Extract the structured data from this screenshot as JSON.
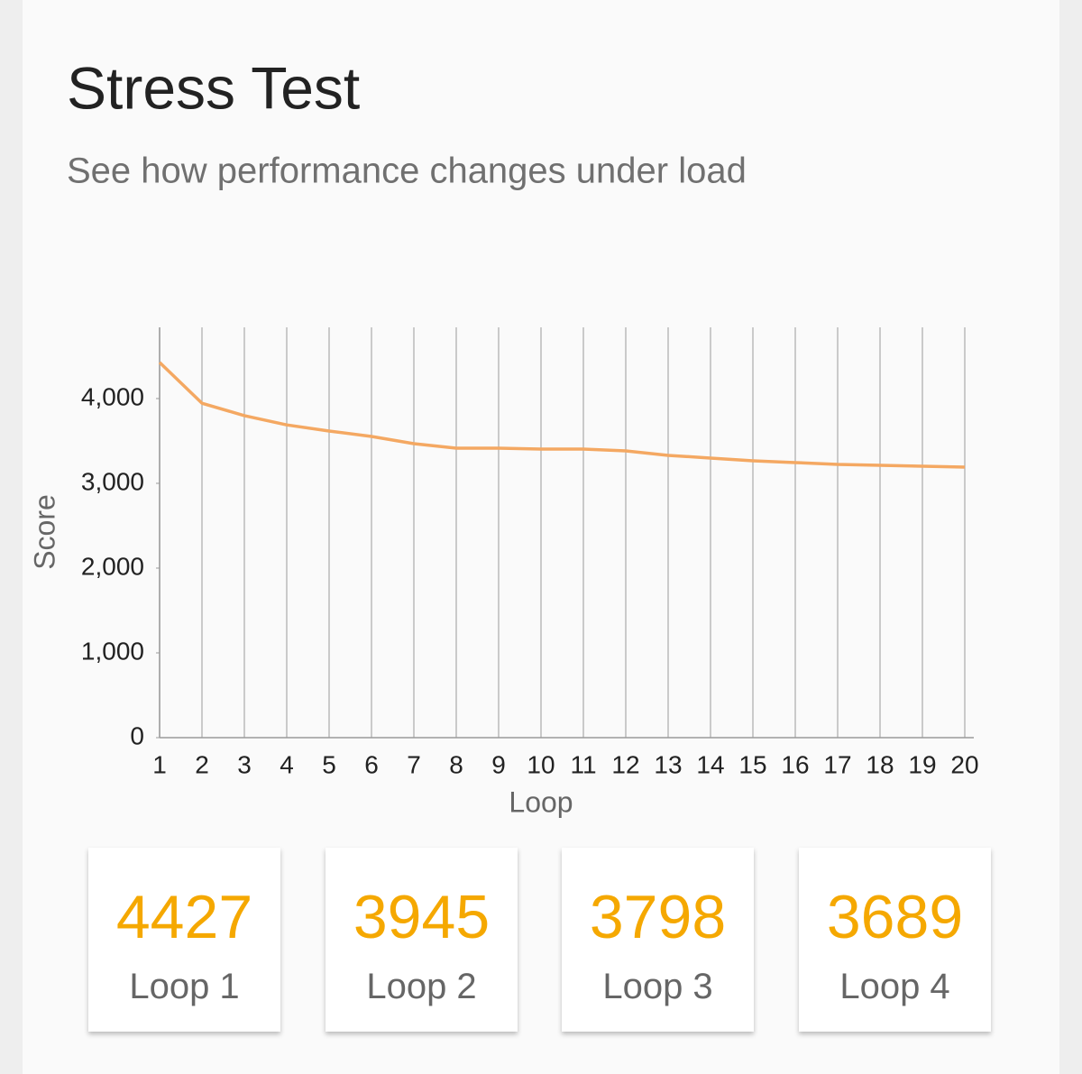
{
  "header": {
    "title": "Stress Test",
    "subtitle": "See how performance changes under load"
  },
  "chart_data": {
    "type": "line",
    "x": [
      1,
      2,
      3,
      4,
      5,
      6,
      7,
      8,
      9,
      10,
      11,
      12,
      13,
      14,
      15,
      16,
      17,
      18,
      19,
      20
    ],
    "values": [
      4427,
      3945,
      3798,
      3689,
      3617,
      3553,
      3468,
      3415,
      3415,
      3404,
      3404,
      3383,
      3330,
      3298,
      3266,
      3245,
      3223,
      3213,
      3202,
      3191
    ],
    "color": "#f4a862",
    "xlabel": "Loop",
    "ylabel": "Score",
    "xlim": [
      1,
      20
    ],
    "xticks": [
      1,
      2,
      3,
      4,
      5,
      6,
      7,
      8,
      9,
      10,
      11,
      12,
      13,
      14,
      15,
      16,
      17,
      18,
      19,
      20
    ],
    "ylim": [
      0,
      4840
    ],
    "yticks": [
      0,
      {
        "value": 1000,
        "label": "1,000"
      },
      {
        "value": 2000,
        "label": "2,000"
      },
      {
        "value": 3000,
        "label": "3,000"
      },
      {
        "value": 4000,
        "label": "4,000"
      }
    ],
    "grid": "x"
  },
  "cards": [
    {
      "value": 4427,
      "label": "Loop 1"
    },
    {
      "value": 3945,
      "label": "Loop 2"
    },
    {
      "value": 3798,
      "label": "Loop 3"
    },
    {
      "value": 3689,
      "label": "Loop 4"
    }
  ]
}
